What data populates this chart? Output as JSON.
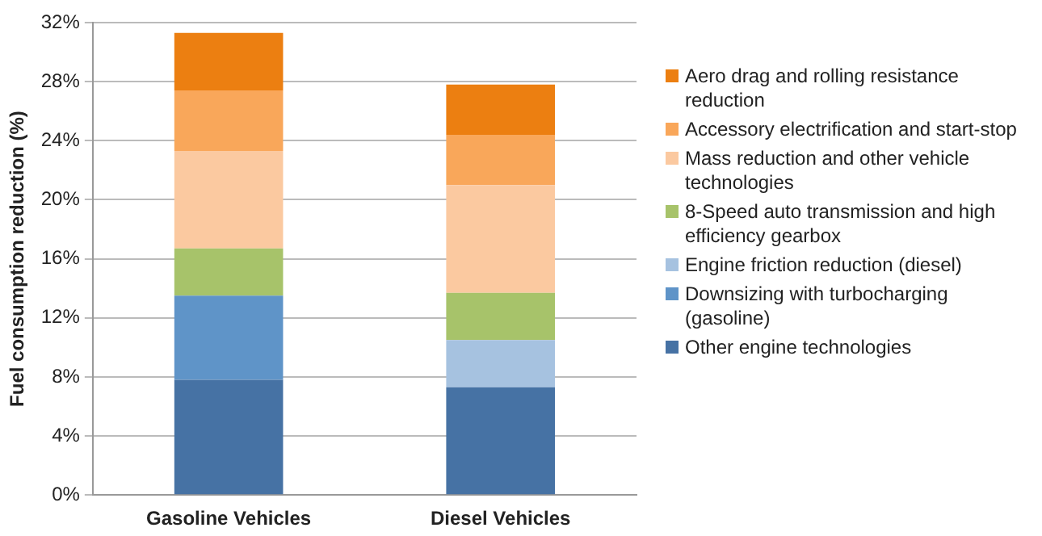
{
  "chart_data": {
    "type": "bar",
    "stacked": true,
    "ylabel": "Fuel consumption reduction (%)",
    "categories": [
      "Gasoline Vehicles",
      "Diesel Vehicles"
    ],
    "series": [
      {
        "name": "Other engine technologies",
        "color": "#4672a4",
        "values": [
          7.8,
          7.3
        ]
      },
      {
        "name": "Downsizing with turbocharging (gasoline)",
        "color": "#5f94c8",
        "values": [
          5.7,
          null
        ]
      },
      {
        "name": "Engine friction reduction (diesel)",
        "color": "#a6c2e0",
        "values": [
          null,
          3.2
        ]
      },
      {
        "name": "8-Speed auto transmission and high efficiency gearbox",
        "color": "#a7c36a",
        "values": [
          3.2,
          3.2
        ]
      },
      {
        "name": "Mass reduction and other vehicle technologies",
        "color": "#fbc9a0",
        "values": [
          6.6,
          7.3
        ]
      },
      {
        "name": "Accessory electrification and start-stop",
        "color": "#f9a75a",
        "values": [
          4.1,
          3.4
        ]
      },
      {
        "name": "Aero drag and rolling resistance reduction",
        "color": "#ec7f11",
        "values": [
          3.9,
          3.4
        ]
      }
    ],
    "ylim": [
      0,
      32
    ],
    "yticks": [
      {
        "value": 0,
        "label": "0%"
      },
      {
        "value": 4,
        "label": "4%"
      },
      {
        "value": 8,
        "label": "8%"
      },
      {
        "value": 12,
        "label": "12%"
      },
      {
        "value": 16,
        "label": "16%"
      },
      {
        "value": 20,
        "label": "20%"
      },
      {
        "value": 24,
        "label": "24%"
      },
      {
        "value": 28,
        "label": "28%"
      },
      {
        "value": 32,
        "label": "32%"
      }
    ],
    "grid": "y",
    "legend": "right"
  }
}
